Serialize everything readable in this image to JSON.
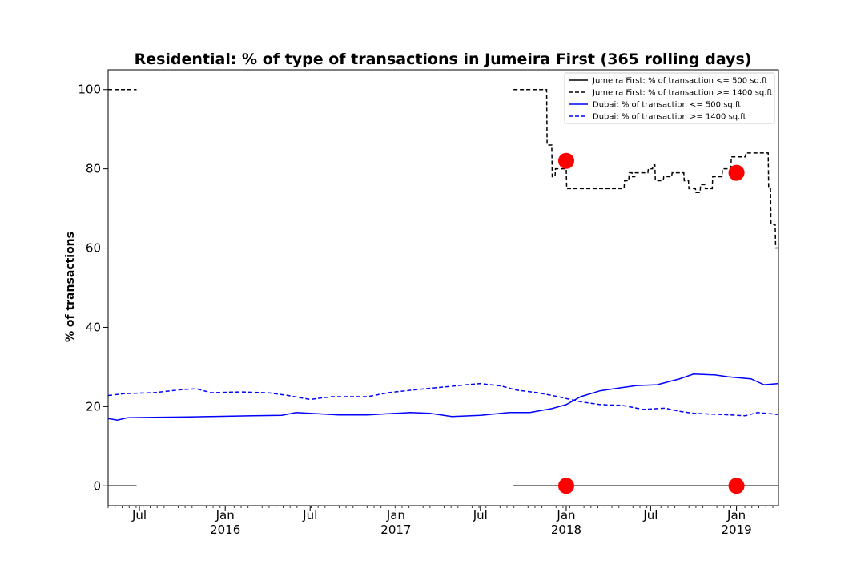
{
  "chart_data": {
    "type": "line",
    "title": "Residential: % of type of transactions in Jumeira First (365 rolling days)",
    "xlabel": "",
    "ylabel": "% of transactions",
    "ylim": [
      -5,
      105
    ],
    "xlim": [
      "2015-04-25",
      "2019-04-01"
    ],
    "grid": false,
    "legend_position": "top-right",
    "y_ticks": [
      0,
      20,
      40,
      60,
      80,
      100
    ],
    "x_ticks": [
      {
        "date": "2015-07-01",
        "label": "Jul",
        "sublabel": ""
      },
      {
        "date": "2016-01-01",
        "label": "Jan",
        "sublabel": "2016"
      },
      {
        "date": "2016-07-01",
        "label": "Jul",
        "sublabel": ""
      },
      {
        "date": "2017-01-01",
        "label": "Jan",
        "sublabel": "2017"
      },
      {
        "date": "2017-07-01",
        "label": "Jul",
        "sublabel": ""
      },
      {
        "date": "2018-01-01",
        "label": "Jan",
        "sublabel": "2018"
      },
      {
        "date": "2018-07-01",
        "label": "Jul",
        "sublabel": ""
      },
      {
        "date": "2019-01-01",
        "label": "Jan",
        "sublabel": "2019"
      }
    ],
    "series": [
      {
        "name": "Jumeira First: % of transaction <= 500 sq.ft",
        "color": "#000000",
        "style": "solid",
        "segments": [
          [
            [
              "2015-04-25",
              0
            ],
            [
              "2015-06-25",
              0
            ]
          ],
          [
            [
              "2017-09-10",
              0
            ],
            [
              "2019-04-01",
              0
            ]
          ]
        ]
      },
      {
        "name": "Jumeira First: % of transaction >= 1400 sq.ft",
        "color": "#000000",
        "style": "dashed",
        "step": true,
        "segments": [
          [
            [
              "2015-04-25",
              100
            ],
            [
              "2015-06-25",
              100
            ]
          ],
          [
            [
              "2017-09-10",
              100
            ],
            [
              "2017-11-20",
              100
            ],
            [
              "2017-11-21",
              86
            ],
            [
              "2017-12-01",
              86
            ],
            [
              "2017-12-02",
              78
            ],
            [
              "2017-12-08",
              78
            ],
            [
              "2017-12-09",
              80
            ],
            [
              "2018-01-01",
              80
            ],
            [
              "2018-01-02",
              75
            ],
            [
              "2018-05-05",
              75
            ],
            [
              "2018-05-06",
              77
            ],
            [
              "2018-05-15",
              77
            ],
            [
              "2018-05-16",
              79
            ],
            [
              "2018-05-22",
              79
            ],
            [
              "2018-05-23",
              78
            ],
            [
              "2018-05-28",
              78
            ],
            [
              "2018-05-29",
              79
            ],
            [
              "2018-06-25",
              79
            ],
            [
              "2018-06-26",
              80
            ],
            [
              "2018-07-05",
              80
            ],
            [
              "2018-07-06",
              81
            ],
            [
              "2018-07-10",
              81
            ],
            [
              "2018-07-11",
              77
            ],
            [
              "2018-07-28",
              77
            ],
            [
              "2018-07-29",
              78
            ],
            [
              "2018-08-15",
              78
            ],
            [
              "2018-08-16",
              79
            ],
            [
              "2018-09-10",
              79
            ],
            [
              "2018-09-11",
              77
            ],
            [
              "2018-09-20",
              77
            ],
            [
              "2018-09-21",
              75
            ],
            [
              "2018-10-05",
              75
            ],
            [
              "2018-10-06",
              74
            ],
            [
              "2018-10-15",
              74
            ],
            [
              "2018-10-16",
              76
            ],
            [
              "2018-10-25",
              76
            ],
            [
              "2018-10-26",
              75
            ],
            [
              "2018-11-10",
              75
            ],
            [
              "2018-11-11",
              78
            ],
            [
              "2018-12-01",
              78
            ],
            [
              "2018-12-02",
              80
            ],
            [
              "2018-12-20",
              80
            ],
            [
              "2018-12-21",
              83
            ],
            [
              "2019-01-20",
              83
            ],
            [
              "2019-01-21",
              84
            ],
            [
              "2019-03-10",
              84
            ],
            [
              "2019-03-11",
              75
            ],
            [
              "2019-03-15",
              75
            ],
            [
              "2019-03-16",
              66
            ],
            [
              "2019-03-25",
              66
            ],
            [
              "2019-03-26",
              60
            ],
            [
              "2019-04-01",
              60
            ]
          ]
        ]
      },
      {
        "name": "Dubai: % of transaction <= 500 sq.ft",
        "color": "#0000ff",
        "style": "solid",
        "segments": [
          [
            [
              "2015-04-25",
              17.0
            ],
            [
              "2015-05-15",
              16.6
            ],
            [
              "2015-06-05",
              17.2
            ],
            [
              "2015-08-01",
              17.3
            ],
            [
              "2015-10-15",
              17.4
            ],
            [
              "2015-12-01",
              17.5
            ],
            [
              "2016-03-01",
              17.7
            ],
            [
              "2016-05-01",
              17.8
            ],
            [
              "2016-06-01",
              18.5
            ],
            [
              "2016-07-01",
              18.3
            ],
            [
              "2016-09-01",
              17.9
            ],
            [
              "2016-11-01",
              17.9
            ],
            [
              "2016-12-15",
              18.2
            ],
            [
              "2017-02-01",
              18.5
            ],
            [
              "2017-03-15",
              18.3
            ],
            [
              "2017-05-01",
              17.5
            ],
            [
              "2017-07-01",
              17.8
            ],
            [
              "2017-09-01",
              18.5
            ],
            [
              "2017-10-15",
              18.5
            ],
            [
              "2017-12-01",
              19.5
            ],
            [
              "2018-01-01",
              20.5
            ],
            [
              "2018-02-01",
              22.5
            ],
            [
              "2018-03-15",
              24.0
            ],
            [
              "2018-05-01",
              24.8
            ],
            [
              "2018-06-01",
              25.3
            ],
            [
              "2018-07-15",
              25.5
            ],
            [
              "2018-09-01",
              27.0
            ],
            [
              "2018-10-01",
              28.2
            ],
            [
              "2018-11-15",
              28.0
            ],
            [
              "2018-12-15",
              27.5
            ],
            [
              "2019-02-01",
              27.0
            ],
            [
              "2019-03-01",
              25.5
            ],
            [
              "2019-04-01",
              25.8
            ]
          ]
        ]
      },
      {
        "name": "Dubai: % of transaction >= 1400 sq.ft",
        "color": "#0000ff",
        "style": "dashed",
        "segments": [
          [
            [
              "2015-04-25",
              22.8
            ],
            [
              "2015-06-01",
              23.3
            ],
            [
              "2015-08-01",
              23.5
            ],
            [
              "2015-10-01",
              24.3
            ],
            [
              "2015-11-01",
              24.5
            ],
            [
              "2015-12-01",
              23.5
            ],
            [
              "2016-02-01",
              23.7
            ],
            [
              "2016-04-01",
              23.5
            ],
            [
              "2016-05-15",
              22.8
            ],
            [
              "2016-07-01",
              21.8
            ],
            [
              "2016-08-15",
              22.5
            ],
            [
              "2016-11-01",
              22.5
            ],
            [
              "2016-12-15",
              23.5
            ],
            [
              "2017-02-15",
              24.3
            ],
            [
              "2017-04-01",
              24.8
            ],
            [
              "2017-06-01",
              25.5
            ],
            [
              "2017-07-01",
              25.8
            ],
            [
              "2017-08-15",
              25.2
            ],
            [
              "2017-09-15",
              24.2
            ],
            [
              "2017-11-01",
              23.5
            ],
            [
              "2017-12-15",
              22.5
            ],
            [
              "2018-02-01",
              21.2
            ],
            [
              "2018-03-15",
              20.5
            ],
            [
              "2018-05-01",
              20.3
            ],
            [
              "2018-06-15",
              19.3
            ],
            [
              "2018-08-01",
              19.6
            ],
            [
              "2018-09-01",
              18.8
            ],
            [
              "2018-10-01",
              18.3
            ],
            [
              "2018-12-01",
              18.0
            ],
            [
              "2019-01-20",
              17.7
            ],
            [
              "2019-02-15",
              18.5
            ],
            [
              "2019-04-01",
              18.0
            ]
          ]
        ]
      }
    ],
    "markers": [
      {
        "date": "2018-01-01",
        "value": 0,
        "color": "#ff0000"
      },
      {
        "date": "2018-01-01",
        "value": 82,
        "color": "#ff0000"
      },
      {
        "date": "2019-01-01",
        "value": 0,
        "color": "#ff0000"
      },
      {
        "date": "2019-01-01",
        "value": 79,
        "color": "#ff0000"
      }
    ]
  }
}
